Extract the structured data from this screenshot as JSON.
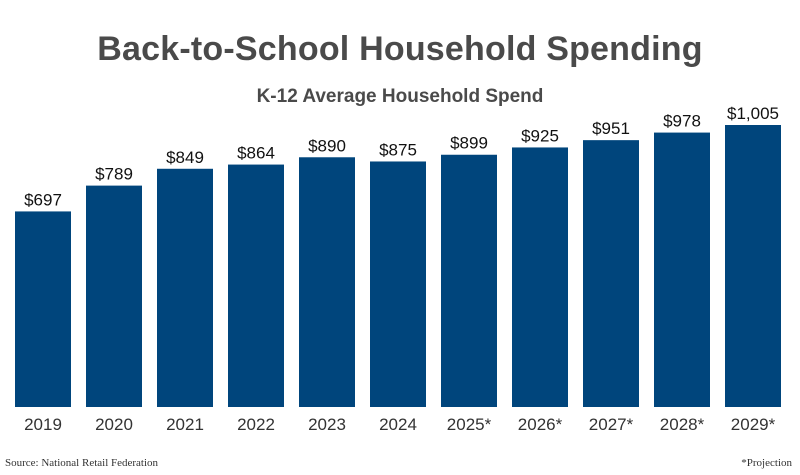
{
  "chart_data": {
    "type": "bar",
    "title": "Back-to-School Household Spending",
    "subtitle": "K-12 Average Household Spend",
    "categories": [
      "2019",
      "2020",
      "2021",
      "2022",
      "2023",
      "2024",
      "2025*",
      "2026*",
      "2027*",
      "2028*",
      "2029*"
    ],
    "values": [
      697,
      789,
      849,
      864,
      890,
      875,
      899,
      925,
      951,
      978,
      1005
    ],
    "value_labels": [
      "$697",
      "$789",
      "$849",
      "$864",
      "$890",
      "$875",
      "$899",
      "$925",
      "$951",
      "$978",
      "$1,005"
    ],
    "ylim": [
      0,
      1005
    ],
    "grid": false,
    "bar_color": "#00457c"
  },
  "footer": {
    "source": "Source: National Retail Federation",
    "note": "*Projection"
  }
}
